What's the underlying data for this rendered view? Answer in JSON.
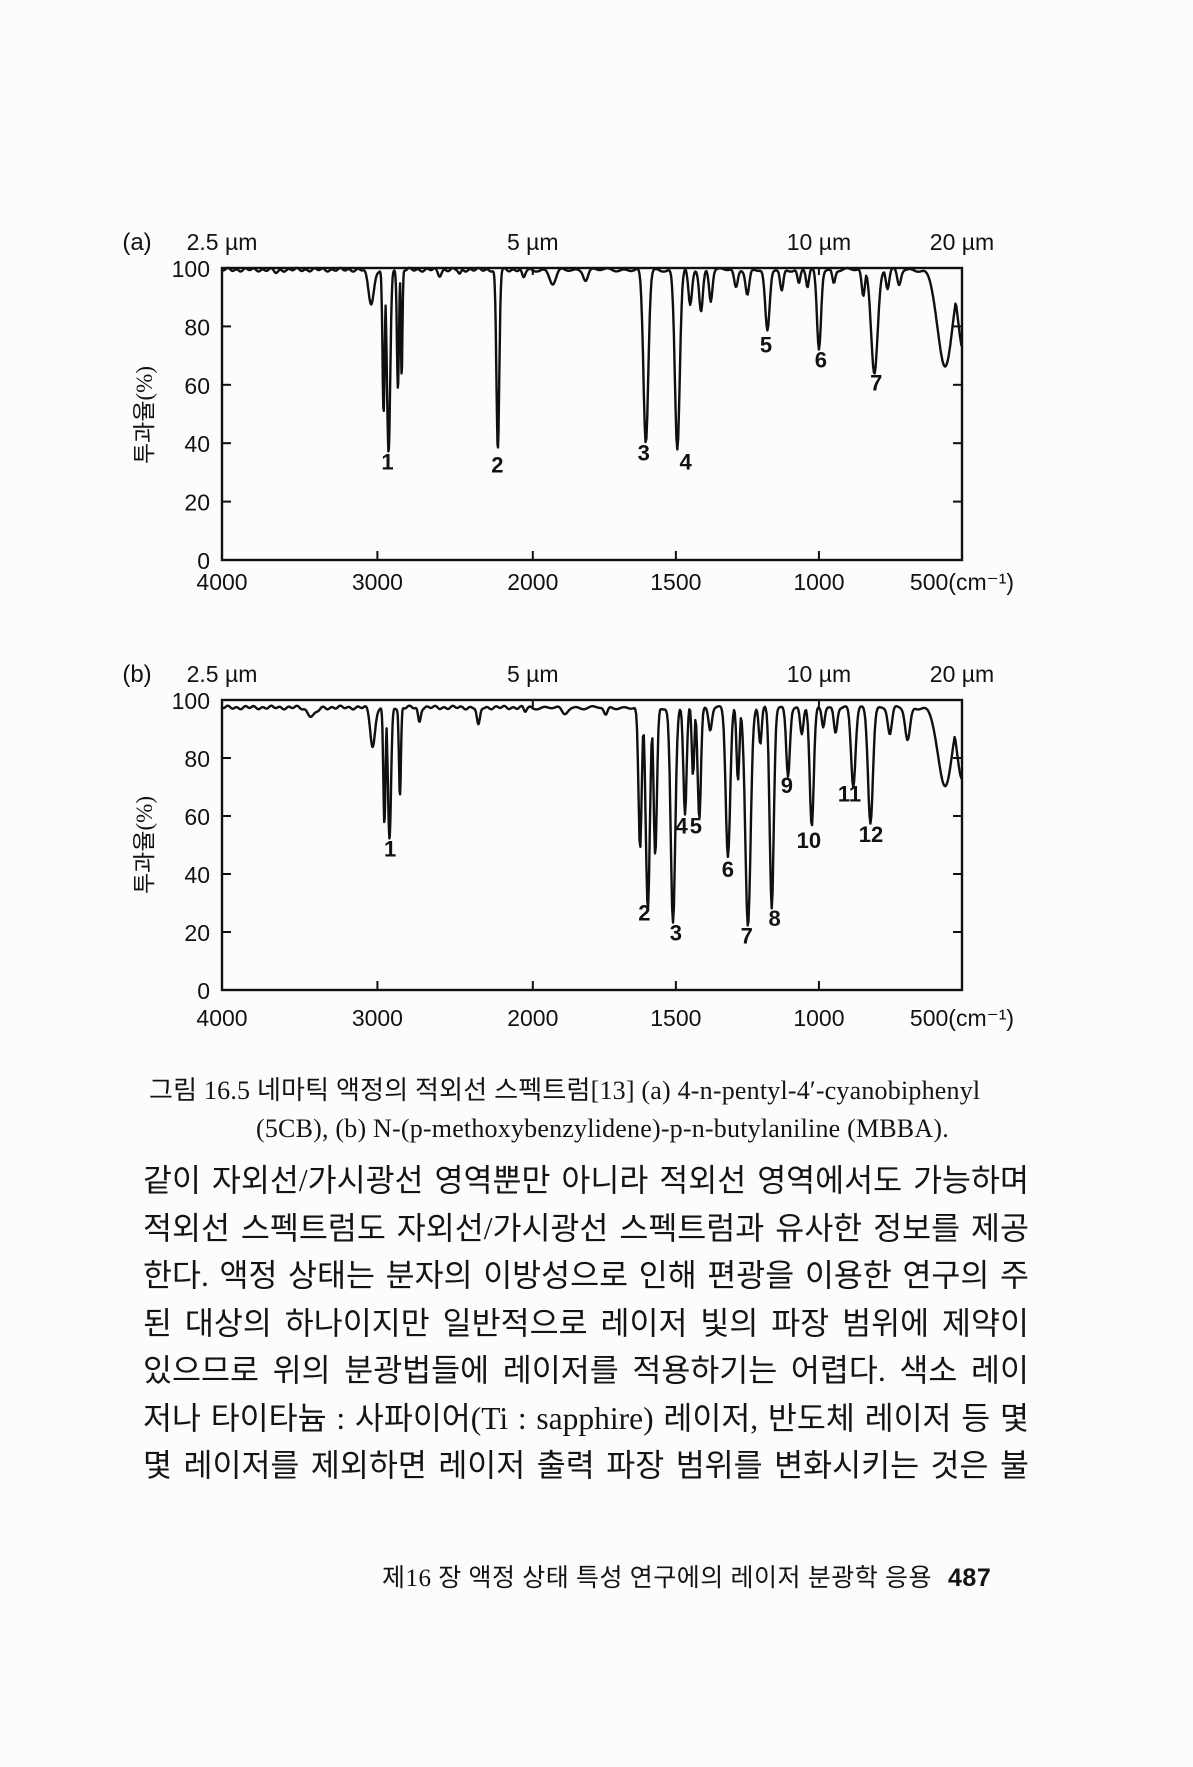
{
  "page": {
    "bg": "#fcfcfc",
    "ink": "#141414"
  },
  "figure": {
    "caption_line1": "그림 16.5 네마틱 액정의 적외선 스펙트럼[13] (a) 4-n-pentyl-4′-cyanobiphenyl",
    "caption_line2": "(5CB), (b) N-(p-methoxybenzylidene)-p-n-butylaniline (MBBA)."
  },
  "body": {
    "lines": [
      "같이 자외선/가시광선 영역뿐만 아니라 적외선 영역에서도 가능하며",
      "적외선 스펙트럼도 자외선/가시광선 스펙트럼과 유사한 정보를 제공",
      "한다. 액정 상태는 분자의 이방성으로 인해 편광을 이용한 연구의 주",
      "된 대상의 하나이지만 일반적으로 레이저 빛의 파장 범위에 제약이",
      "있으므로 위의 분광법들에 레이저를 적용하기는 어렵다. 색소 레이",
      "저나 타이타늄 : 사파이어(Ti : sapphire) 레이저, 반도체 레이저 등 몇",
      "몇 레이저를 제외하면 레이저 출력 파장 범위를 변화시키는 것은 불"
    ]
  },
  "footer": {
    "chapter_title": "제16 장  액정 상태 특성 연구에의 레이저 분광학 응용",
    "page_number": "487"
  },
  "chart_data": [
    {
      "type": "line",
      "panel_label": "(a)",
      "compound": "4-n-pentyl-4′-cyanobiphenyl (5CB)",
      "ylabel": "투과율(%)",
      "ylim": [
        0,
        100
      ],
      "y_ticks": [
        100,
        80,
        60,
        40,
        20,
        0
      ],
      "x_ticks": [
        {
          "label": "4000",
          "wn": 4000
        },
        {
          "label": "3000",
          "wn": 3000
        },
        {
          "label": "2000",
          "wn": 2000
        },
        {
          "label": "1500",
          "wn": 1500
        },
        {
          "label": "1000",
          "wn": 1000
        },
        {
          "label": "500(cm⁻¹)",
          "wn": 500
        }
      ],
      "wavelength_labels": [
        {
          "label": "2.5 µm",
          "wn": 4000
        },
        {
          "label": "5 µm",
          "wn": 2000
        },
        {
          "label": "10 µm",
          "wn": 1000
        },
        {
          "label": "20 µm",
          "wn": 500
        }
      ],
      "baseline": 99.4,
      "bands": [
        [
          3650,
          98.5,
          20
        ],
        [
          3040,
          88,
          26
        ],
        [
          2960,
          50,
          10
        ],
        [
          2928,
          37,
          15
        ],
        [
          2868,
          59,
          9
        ],
        [
          2844,
          63,
          7
        ],
        [
          2600,
          97.5,
          16
        ],
        [
          2470,
          97.8,
          12
        ],
        [
          2225,
          38,
          13
        ],
        [
          2060,
          96.5,
          14
        ],
        [
          1930,
          94.5,
          16
        ],
        [
          1815,
          96,
          11
        ],
        [
          1605,
          40,
          12
        ],
        [
          1495,
          38,
          12
        ],
        [
          1450,
          87,
          9
        ],
        [
          1412,
          85,
          9
        ],
        [
          1378,
          89,
          8
        ],
        [
          1290,
          93,
          9
        ],
        [
          1250,
          91,
          9
        ],
        [
          1180,
          78,
          11
        ],
        [
          1130,
          92,
          8
        ],
        [
          1070,
          94.5,
          7
        ],
        [
          1040,
          93.5,
          7
        ],
        [
          1000,
          72,
          10
        ],
        [
          948,
          95,
          7
        ],
        [
          845,
          90,
          8
        ],
        [
          806,
          64,
          16
        ],
        [
          760,
          93,
          8
        ],
        [
          720,
          94,
          9
        ],
        [
          560,
          66,
          36
        ],
        [
          495,
          72,
          28
        ]
      ],
      "peak_labels": [
        {
          "n": "1",
          "wn": 2935,
          "t": 31
        },
        {
          "n": "2",
          "wn": 2228,
          "t": 30
        },
        {
          "n": "3",
          "wn": 1612,
          "t": 34
        },
        {
          "n": "4",
          "wn": 1466,
          "t": 31
        },
        {
          "n": "5",
          "wn": 1185,
          "t": 71
        },
        {
          "n": "6",
          "wn": 993,
          "t": 66
        },
        {
          "n": "7",
          "wn": 800,
          "t": 58
        }
      ]
    },
    {
      "type": "line",
      "panel_label": "(b)",
      "compound": "N-(p-methoxybenzylidene)-p-n-butylaniline (MBBA)",
      "ylabel": "투과율(%)",
      "ylim": [
        0,
        100
      ],
      "y_ticks": [
        100,
        80,
        60,
        40,
        20,
        0
      ],
      "x_ticks": [
        {
          "label": "4000",
          "wn": 4000
        },
        {
          "label": "3000",
          "wn": 3000
        },
        {
          "label": "2000",
          "wn": 2000
        },
        {
          "label": "1500",
          "wn": 1500
        },
        {
          "label": "1000",
          "wn": 1000
        },
        {
          "label": "500(cm⁻¹)",
          "wn": 500
        }
      ],
      "wavelength_labels": [
        {
          "label": "2.5 µm",
          "wn": 4000
        },
        {
          "label": "5 µm",
          "wn": 2000
        },
        {
          "label": "10 µm",
          "wn": 1000
        },
        {
          "label": "20 µm",
          "wn": 500
        }
      ],
      "baseline": 97.4,
      "bands": [
        [
          3420,
          94.5,
          40
        ],
        [
          3030,
          84,
          22
        ],
        [
          2955,
          57,
          10
        ],
        [
          2922,
          52,
          14
        ],
        [
          2855,
          67,
          9
        ],
        [
          2730,
          92.5,
          12
        ],
        [
          2350,
          91,
          14
        ],
        [
          2050,
          96,
          12
        ],
        [
          1890,
          95,
          14
        ],
        [
          1745,
          94.5,
          9
        ],
        [
          1625,
          48,
          8
        ],
        [
          1598,
          28,
          10
        ],
        [
          1572,
          46,
          8
        ],
        [
          1510,
          23,
          11
        ],
        [
          1468,
          60,
          8
        ],
        [
          1440,
          74,
          6
        ],
        [
          1418,
          59,
          8
        ],
        [
          1380,
          90,
          8
        ],
        [
          1318,
          46,
          11
        ],
        [
          1283,
          72,
          7
        ],
        [
          1248,
          22,
          13
        ],
        [
          1205,
          85,
          7
        ],
        [
          1165,
          28,
          10
        ],
        [
          1108,
          74,
          9
        ],
        [
          1060,
          88,
          8
        ],
        [
          1025,
          56,
          10
        ],
        [
          985,
          91,
          7
        ],
        [
          942,
          89,
          8
        ],
        [
          880,
          70,
          11
        ],
        [
          820,
          58,
          12
        ],
        [
          752,
          88,
          10
        ],
        [
          690,
          86,
          12
        ],
        [
          560,
          70,
          34
        ],
        [
          500,
          73,
          26
        ]
      ],
      "peak_labels": [
        {
          "n": "1",
          "wn": 2918,
          "t": 46
        },
        {
          "n": "2",
          "wn": 1610,
          "t": 24
        },
        {
          "n": "3",
          "wn": 1500,
          "t": 17
        },
        {
          "n": "4",
          "wn": 1480,
          "t": 54
        },
        {
          "n": "5",
          "wn": 1430,
          "t": 54
        },
        {
          "n": "6",
          "wn": 1318,
          "t": 39
        },
        {
          "n": "7",
          "wn": 1252,
          "t": 16
        },
        {
          "n": "8",
          "wn": 1155,
          "t": 22
        },
        {
          "n": "9",
          "wn": 1112,
          "t": 68
        },
        {
          "n": "10",
          "wn": 1035,
          "t": 49
        },
        {
          "n": "11",
          "wn": 893,
          "t": 65
        },
        {
          "n": "12",
          "wn": 818,
          "t": 51
        }
      ]
    }
  ]
}
